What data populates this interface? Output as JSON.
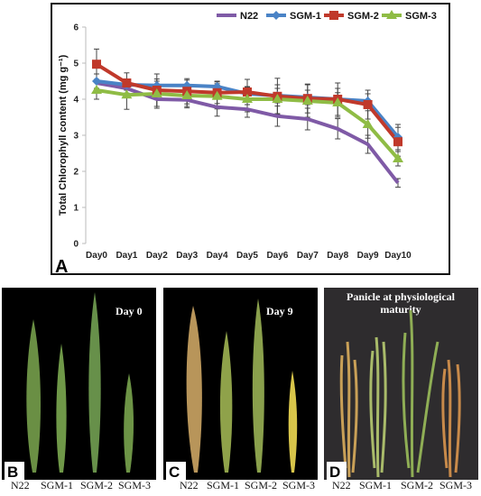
{
  "chart_data": {
    "type": "line",
    "panel_label": "A",
    "ylabel": "Total Chlorophyll content (mg g⁻¹)",
    "xlabel": "",
    "ylim": [
      0,
      6
    ],
    "yticks": [
      "0",
      "1",
      "2",
      "3",
      "4",
      "5",
      "6"
    ],
    "categories": [
      "Day0",
      "Day1",
      "Day2",
      "Day3",
      "Day4",
      "Day5",
      "Day6",
      "Day7",
      "Day8",
      "Day9",
      "Day10"
    ],
    "legend_position": "top-right",
    "series": [
      {
        "name": "N22",
        "color": "#7f5aa6",
        "marker": "none",
        "values": [
          4.45,
          4.3,
          4.0,
          3.98,
          3.78,
          3.72,
          3.53,
          3.45,
          3.18,
          2.75,
          1.68
        ],
        "errors": [
          0.25,
          0.25,
          0.25,
          0.22,
          0.25,
          0.22,
          0.28,
          0.3,
          0.28,
          0.25,
          0.12
        ]
      },
      {
        "name": "SGM-1",
        "color": "#4a83c6",
        "marker": "diamond",
        "values": [
          4.5,
          4.4,
          4.38,
          4.38,
          4.35,
          4.15,
          4.1,
          4.05,
          4.0,
          3.95,
          2.95
        ],
        "errors": [
          0.2,
          0.15,
          0.18,
          0.15,
          0.15,
          0.18,
          0.2,
          0.2,
          0.18,
          0.2,
          0.35
        ]
      },
      {
        "name": "SGM-2",
        "color": "#c0392b",
        "marker": "square",
        "values": [
          4.97,
          4.45,
          4.25,
          4.22,
          4.18,
          4.2,
          4.08,
          4.02,
          4.0,
          3.85,
          2.82
        ],
        "errors": [
          0.42,
          0.28,
          0.45,
          0.35,
          0.3,
          0.35,
          0.5,
          0.4,
          0.45,
          0.4,
          0.4
        ]
      },
      {
        "name": "SGM-3",
        "color": "#8fbc45",
        "marker": "triangle",
        "values": [
          4.25,
          4.12,
          4.15,
          4.1,
          4.08,
          4.0,
          4.0,
          3.95,
          3.9,
          3.3,
          2.35
        ],
        "errors": [
          0.25,
          0.4,
          0.35,
          0.3,
          0.35,
          0.35,
          0.4,
          0.45,
          0.4,
          0.38,
          0.2
        ]
      }
    ]
  },
  "photos": [
    {
      "label": "B",
      "title": "Day 0",
      "captions": [
        "N22",
        "SGM-1",
        "SGM-2",
        "SGM-3"
      ]
    },
    {
      "label": "C",
      "title": "Day 9",
      "captions": [
        "N22",
        "SGM-1",
        "SGM-2",
        "SGM-3"
      ]
    },
    {
      "label": "D",
      "title": "Panicle at physiological maturity",
      "captions": [
        "N22",
        "SGM-1",
        "SGM-2",
        "SGM-3"
      ]
    }
  ],
  "colors": {
    "photo_bg": "#000000",
    "panicle_bg": "#2e2c2e",
    "panel_letter_bg": "#ffffff"
  }
}
